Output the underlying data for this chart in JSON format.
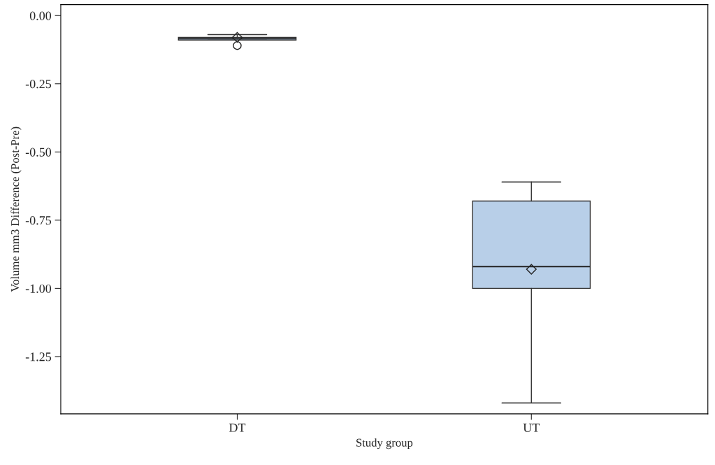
{
  "chart_data": {
    "type": "box",
    "xlabel": "Study group",
    "ylabel": "Volume mm3 Difference (Post-Pre)",
    "categories": [
      "DT",
      "UT"
    ],
    "boxes": [
      {
        "low": -0.09,
        "q1": -0.09,
        "median": -0.085,
        "q3": -0.08,
        "high": -0.07,
        "mean": -0.08,
        "outliers": [
          -0.11
        ]
      },
      {
        "low": -1.42,
        "q1": -1.0,
        "median": -0.92,
        "q3": -0.68,
        "high": -0.61,
        "mean": -0.93
      }
    ],
    "color": "#b8cfe8",
    "ylim": [
      -1.46,
      0.04
    ],
    "yticks": [
      {
        "value": 0,
        "label": "0.00"
      },
      {
        "value": -0.25,
        "label": "-0.25"
      },
      {
        "value": -0.5,
        "label": "-0.50"
      },
      {
        "value": -0.75,
        "label": "-0.75"
      },
      {
        "value": -1.0,
        "label": "-1.00"
      },
      {
        "value": -1.25,
        "label": "-1.25"
      }
    ],
    "grid": false
  }
}
